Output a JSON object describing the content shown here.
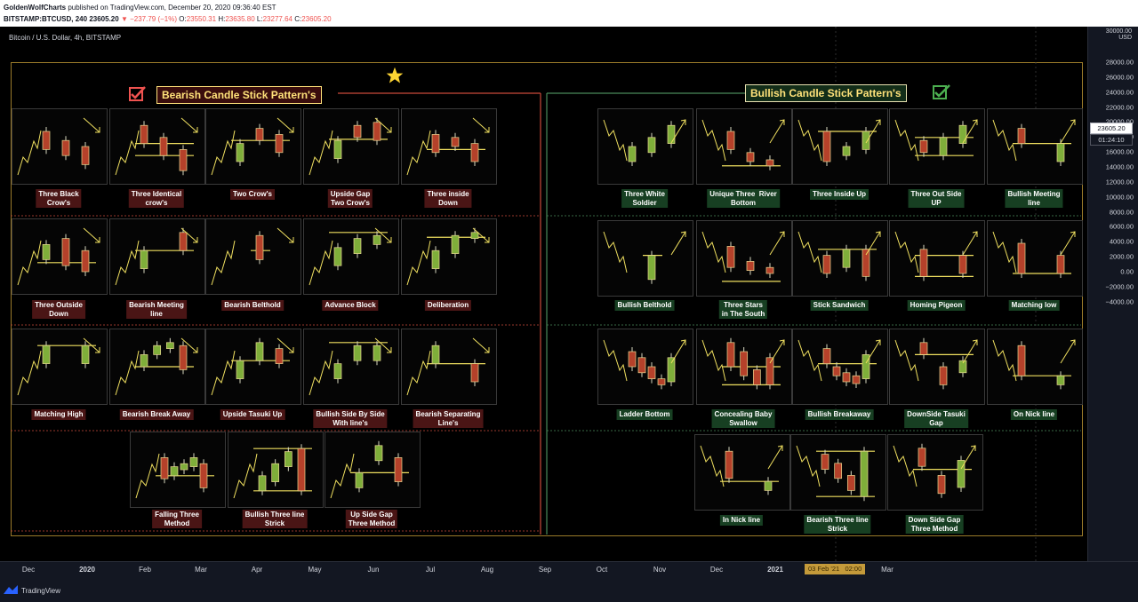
{
  "header": {
    "author": "GoldenWolfCharts",
    "published": "published on TradingView.com, December 20, 2020 09:36:40 EST",
    "symbol": "BITSTAMP:BTCUSD, 240",
    "last": "23605.20",
    "change": "▼ −237.79 (−1%)",
    "o_label": "O:",
    "o_val": "23550.31",
    "h_label": "H:",
    "h_val": "23635.80",
    "l_label": "L:",
    "l_val": "23277.64",
    "c_label": "C:",
    "c_val": "23605.20"
  },
  "chart": {
    "title": "Bitcoin / U.S. Dollar, 4h, BITSTAMP",
    "bearish_title": "Bearish Candle Stick Pattern's",
    "bullish_title": "Bullish Candle Stick Pattern's"
  },
  "colors": {
    "bear_candle": "#b5412a",
    "bull_candle": "#7fae3a",
    "line": "#f0e060",
    "frame": "#9a7a2a",
    "bear_box": "#4a1515",
    "bull_box": "#173f22"
  },
  "icons": {
    "star": "star-icon",
    "check": "checkbox-check-icon",
    "logo": "tradingview-logo-icon"
  },
  "price_axis": {
    "currency": "USD",
    "top_label": "30000.00",
    "ticks": [
      "28000.00",
      "26000.00",
      "24000.00",
      "22000.00",
      "20000.00",
      "18000.00",
      "16000.00",
      "14000.00",
      "12000.00",
      "10000.00",
      "8000.00",
      "6000.00",
      "4000.00",
      "2000.00",
      "0.00",
      "−2000.00",
      "−4000.00"
    ],
    "last_price": "23605.20",
    "countdown": "01:24:10"
  },
  "time_axis": {
    "ticks": [
      "Dec",
      "2020",
      "Feb",
      "Mar",
      "Apr",
      "May",
      "Jun",
      "Jul",
      "Aug",
      "Sep",
      "Oct",
      "Nov",
      "Dec",
      "2021",
      "Feb",
      "Mar"
    ],
    "bold": [
      "2020",
      "2021"
    ],
    "cursor_date": "03 Feb '21",
    "cursor_time": "02:00"
  },
  "footer": {
    "brand": "TradingView"
  },
  "patterns": {
    "bearish": [
      {
        "name": "Three Black\nCrow's",
        "candles": [
          [
            "r",
            0.75,
            0.45
          ],
          [
            "r",
            0.6,
            0.35
          ],
          [
            "r",
            0.5,
            0.2
          ]
        ],
        "hlines": [],
        "arrow": "down"
      },
      {
        "name": "Three Identical\ncrow's",
        "candles": [
          [
            "r",
            0.85,
            0.55
          ],
          [
            "r",
            0.65,
            0.35
          ],
          [
            "r",
            0.45,
            0.1
          ]
        ],
        "hlines": [
          0.35,
          0.55
        ],
        "arrow": "down"
      },
      {
        "name": "Two Crow's",
        "candles": [
          [
            "g",
            0.25,
            0.55
          ],
          [
            "r",
            0.8,
            0.6
          ],
          [
            "r",
            0.7,
            0.4
          ]
        ],
        "hlines": [
          0.6
        ],
        "arrow": "down"
      },
      {
        "name": "Upside Gap\nTwo Crow's",
        "candles": [
          [
            "g",
            0.3,
            0.6
          ],
          [
            "r",
            0.85,
            0.65
          ],
          [
            "r",
            0.9,
            0.6
          ]
        ],
        "hlines": [
          0.62
        ],
        "arrow": "down"
      },
      {
        "name": "Three inside\nDown",
        "candles": [
          [
            "r",
            0.7,
            0.4
          ],
          [
            "r",
            0.65,
            0.5
          ],
          [
            "r",
            0.55,
            0.25
          ]
        ],
        "hlines": [
          0.45
        ],
        "arrow": "down"
      }
    ],
    "bearish2": [
      {
        "name": "Three Outside\nDown",
        "candles": [
          [
            "g",
            0.45,
            0.7
          ],
          [
            "r",
            0.8,
            0.35
          ],
          [
            "r",
            0.6,
            0.25
          ]
        ],
        "hlines": [
          0.4
        ],
        "arrow": "down"
      },
      {
        "name": "Bearish Meeting\nline",
        "candles": [
          [
            "g",
            0.3,
            0.6
          ],
          [
            "r",
            0.9,
            0.6
          ]
        ],
        "hlines": [
          0.6
        ],
        "arrow": "down"
      },
      {
        "name": "Bearish Belthold",
        "candles": [
          [
            "r",
            0.85,
            0.45
          ]
        ],
        "hlines": [
          0.6
        ],
        "arrow": "down"
      },
      {
        "name": "Advance Block",
        "candles": [
          [
            "g",
            0.35,
            0.65
          ],
          [
            "g",
            0.55,
            0.8
          ],
          [
            "g",
            0.7,
            0.85
          ]
        ],
        "hlines": [
          0.9
        ],
        "arrow": "down"
      },
      {
        "name": "Deliberation",
        "candles": [
          [
            "g",
            0.3,
            0.6
          ],
          [
            "g",
            0.55,
            0.85
          ],
          [
            "g",
            0.8,
            0.9
          ]
        ],
        "hlines": [
          0.82
        ],
        "arrow": "down"
      }
    ],
    "bearish3": [
      {
        "name": "Matching High",
        "candles": [
          [
            "g",
            0.55,
            0.85
          ],
          [
            "g",
            0.55,
            0.85
          ]
        ],
        "hlines": [
          0.85
        ],
        "arrow": "down"
      },
      {
        "name": "Bearish Break Away",
        "candles": [
          [
            "g",
            0.5,
            0.7
          ],
          [
            "g",
            0.7,
            0.85
          ],
          [
            "g",
            0.8,
            0.9
          ],
          [
            "r",
            0.85,
            0.45
          ]
        ],
        "hlines": [
          0.5
        ],
        "arrow": "down"
      },
      {
        "name": "Upside Tasuki Up",
        "candles": [
          [
            "g",
            0.3,
            0.6
          ],
          [
            "g",
            0.6,
            0.9
          ],
          [
            "r",
            0.8,
            0.55
          ]
        ],
        "hlines": [
          0.6
        ],
        "arrow": "down"
      },
      {
        "name": "Bullish Side By Side\nWith line's",
        "candles": [
          [
            "g",
            0.3,
            0.55
          ],
          [
            "g",
            0.6,
            0.85
          ],
          [
            "g",
            0.6,
            0.85
          ]
        ],
        "hlines": [
          0.9
        ],
        "arrow": "down"
      },
      {
        "name": "Bearish Separating\nLine's",
        "candles": [
          [
            "g",
            0.55,
            0.85
          ],
          [
            "r",
            0.55,
            0.25
          ]
        ],
        "hlines": [
          0.55
        ],
        "arrow": "down"
      }
    ],
    "bearish4": [
      {
        "name": "Falling Three\nMethod",
        "candles": [
          [
            "r",
            0.7,
            0.35
          ],
          [
            "g",
            0.4,
            0.55
          ],
          [
            "g",
            0.5,
            0.6
          ],
          [
            "g",
            0.55,
            0.7
          ],
          [
            "r",
            0.6,
            0.2
          ]
        ],
        "hlines": [
          0.4
        ],
        "arrow": "none"
      },
      {
        "name": "Bullish Three line\nStrick",
        "candles": [
          [
            "g",
            0.15,
            0.4
          ],
          [
            "g",
            0.3,
            0.6
          ],
          [
            "g",
            0.55,
            0.8
          ],
          [
            "r",
            0.85,
            0.15
          ]
        ],
        "hlines": [
          0.15,
          0.85
        ],
        "arrow": "none"
      },
      {
        "name": "Up Side Gap\nThree Method",
        "candles": [
          [
            "g",
            0.2,
            0.45
          ],
          [
            "g",
            0.65,
            0.9
          ],
          [
            "r",
            0.7,
            0.3
          ]
        ],
        "hlines": [
          0.45
        ],
        "arrow": "none"
      }
    ],
    "bullish": [
      {
        "name": "Three White\nSoldier",
        "candles": [
          [
            "g",
            0.25,
            0.5
          ],
          [
            "g",
            0.4,
            0.65
          ],
          [
            "g",
            0.55,
            0.85
          ]
        ],
        "hlines": [],
        "arrow": "up"
      },
      {
        "name": "Unique Three  River\nBottom",
        "candles": [
          [
            "r",
            0.75,
            0.45
          ],
          [
            "r",
            0.4,
            0.25
          ],
          [
            "r",
            0.28,
            0.18
          ]
        ],
        "hlines": [
          0.18
        ],
        "arrow": "up"
      },
      {
        "name": "Three Inside Up",
        "candles": [
          [
            "r",
            0.75,
            0.25
          ],
          [
            "g",
            0.35,
            0.5
          ],
          [
            "g",
            0.45,
            0.75
          ]
        ],
        "hlines": [
          0.75
        ],
        "arrow": "up"
      },
      {
        "name": "Three Out Side\nUP",
        "candles": [
          [
            "r",
            0.6,
            0.4
          ],
          [
            "g",
            0.35,
            0.65
          ],
          [
            "g",
            0.55,
            0.85
          ]
        ],
        "hlines": [
          0.35,
          0.65
        ],
        "arrow": "up"
      },
      {
        "name": "Bullish Meeting\nline",
        "candles": [
          [
            "r",
            0.8,
            0.55
          ],
          [
            "g",
            0.25,
            0.55
          ]
        ],
        "hlines": [
          0.55
        ],
        "arrow": "up"
      }
    ],
    "bullish2": [
      {
        "name": "Bullish Belthold",
        "candles": [
          [
            "g",
            0.15,
            0.55
          ]
        ],
        "hlines": [
          0.55
        ],
        "arrow": "up"
      },
      {
        "name": "Three Stars\nin The South",
        "candles": [
          [
            "r",
            0.7,
            0.35
          ],
          [
            "r",
            0.45,
            0.3
          ],
          [
            "r",
            0.35,
            0.25
          ]
        ],
        "hlines": [
          0.12
        ],
        "arrow": "up"
      },
      {
        "name": "Stick Sandwich",
        "candles": [
          [
            "r",
            0.55,
            0.25
          ],
          [
            "g",
            0.35,
            0.65
          ],
          [
            "r",
            0.65,
            0.2
          ]
        ],
        "hlines": [
          0.65
        ],
        "arrow": "up"
      },
      {
        "name": "Homing Pigeon",
        "candles": [
          [
            "r",
            0.65,
            0.2
          ],
          [
            "r",
            0.55,
            0.25
          ]
        ],
        "hlines": [
          0.55,
          0.2
        ],
        "arrow": "up"
      },
      {
        "name": "Matching low",
        "candles": [
          [
            "r",
            0.75,
            0.25
          ],
          [
            "r",
            0.55,
            0.25
          ]
        ],
        "hlines": [
          0.25
        ],
        "arrow": "up"
      }
    ],
    "bullish3": [
      {
        "name": "Ladder Bottom",
        "candles": [
          [
            "r",
            0.75,
            0.5
          ],
          [
            "r",
            0.65,
            0.4
          ],
          [
            "r",
            0.5,
            0.3
          ],
          [
            "r",
            0.3,
            0.2
          ],
          [
            "g",
            0.25,
            0.65
          ]
        ],
        "hlines": [],
        "arrow": "up"
      },
      {
        "name": "Concealing Baby\nSwallow",
        "candles": [
          [
            "r",
            0.9,
            0.5
          ],
          [
            "r",
            0.75,
            0.35
          ],
          [
            "r",
            0.45,
            0.2
          ],
          [
            "r",
            0.65,
            0.2
          ]
        ],
        "hlines": [
          0.2,
          0.5
        ],
        "arrow": "up"
      },
      {
        "name": "Bullish Breakaway",
        "candles": [
          [
            "r",
            0.8,
            0.55
          ],
          [
            "r",
            0.5,
            0.35
          ],
          [
            "r",
            0.4,
            0.25
          ],
          [
            "r",
            0.35,
            0.22
          ],
          [
            "g",
            0.3,
            0.7
          ]
        ],
        "hlines": [
          0.55
        ],
        "arrow": "up"
      },
      {
        "name": "DownSide Tasuki\nGap",
        "candles": [
          [
            "r",
            0.9,
            0.7
          ],
          [
            "r",
            0.5,
            0.2
          ],
          [
            "g",
            0.4,
            0.6
          ]
        ],
        "hlines": [
          0.7
        ],
        "arrow": "up"
      },
      {
        "name": "On Nick line",
        "candles": [
          [
            "r",
            0.85,
            0.35
          ],
          [
            "g",
            0.2,
            0.35
          ]
        ],
        "hlines": [
          0.35
        ],
        "arrow": "up"
      }
    ],
    "bullish4": [
      {
        "name": "In Nick line",
        "candles": [
          [
            "r",
            0.85,
            0.4
          ],
          [
            "g",
            0.2,
            0.35
          ]
        ],
        "hlines": [
          0.35
        ],
        "arrow": "up"
      },
      {
        "name": "Bearish Three line\nStrick",
        "candles": [
          [
            "r",
            0.8,
            0.55
          ],
          [
            "r",
            0.65,
            0.4
          ],
          [
            "r",
            0.45,
            0.2
          ],
          [
            "g",
            0.1,
            0.85
          ]
        ],
        "hlines": [
          0.85,
          0.1
        ],
        "arrow": "none"
      },
      {
        "name": "Down Side Gap\nThree Method",
        "candles": [
          [
            "r",
            0.9,
            0.6
          ],
          [
            "r",
            0.45,
            0.15
          ],
          [
            "g",
            0.25,
            0.7
          ]
        ],
        "hlines": [
          0.55
        ],
        "arrow": "up"
      }
    ]
  }
}
